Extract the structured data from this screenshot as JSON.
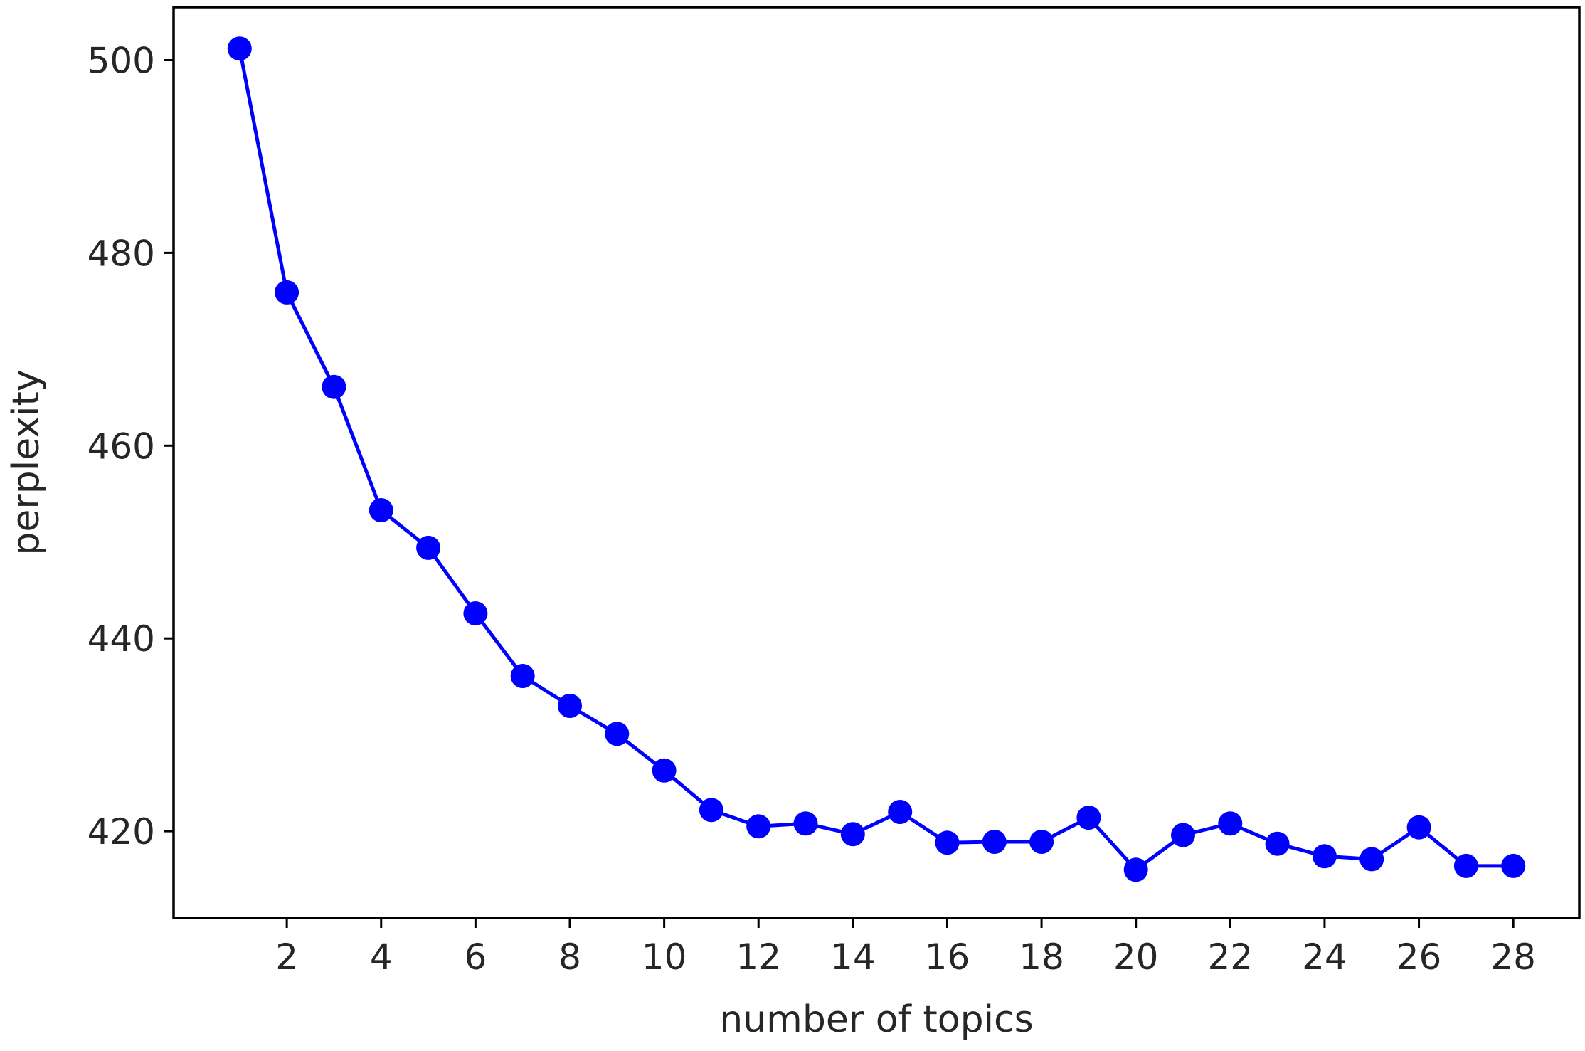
{
  "chart_data": {
    "type": "line",
    "title": "",
    "xlabel": "number of topics",
    "ylabel": "perplexity",
    "x": [
      1,
      2,
      3,
      4,
      5,
      6,
      7,
      8,
      9,
      10,
      11,
      12,
      13,
      14,
      15,
      16,
      17,
      18,
      19,
      20,
      21,
      22,
      23,
      24,
      25,
      26,
      27,
      28
    ],
    "series": [
      {
        "values": [
          501.2,
          475.9,
          466.1,
          453.3,
          449.4,
          442.6,
          436.1,
          433.0,
          430.1,
          426.3,
          422.2,
          420.5,
          420.8,
          419.7,
          422.0,
          418.8,
          418.9,
          418.9,
          421.4,
          416.0,
          419.6,
          420.8,
          418.7,
          417.4,
          417.1,
          420.4,
          416.4,
          416.4
        ],
        "color": "#0000ff",
        "marker": "circle"
      }
    ],
    "xticks": [
      "2",
      "4",
      "6",
      "8",
      "10",
      "12",
      "14",
      "16",
      "18",
      "20",
      "22",
      "24",
      "26",
      "28"
    ],
    "yticks": [
      "420",
      "440",
      "460",
      "480",
      "500"
    ],
    "xlim": [
      -0.4,
      29.4
    ],
    "ylim": [
      411.0,
      505.5
    ],
    "grid": false,
    "legend": "none"
  }
}
